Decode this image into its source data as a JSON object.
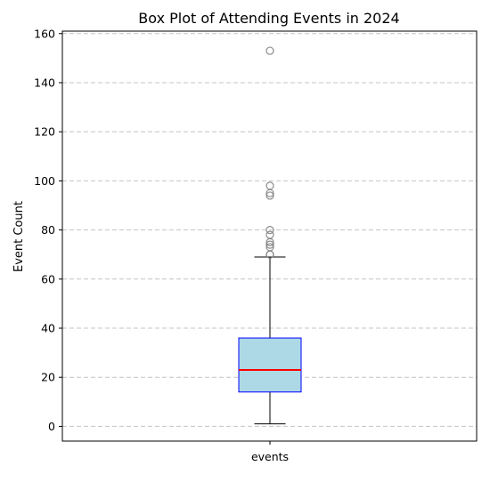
{
  "chart_data": {
    "type": "box",
    "title": "Box Plot of Attending Events in 2024",
    "xlabel": "",
    "ylabel": "Event Count",
    "categories": [
      "events"
    ],
    "ylim": [
      -6,
      161
    ],
    "yticks": [
      0,
      20,
      40,
      60,
      80,
      100,
      120,
      140,
      160
    ],
    "grid": "horizontal-dashed",
    "box": {
      "whisker_low": 1,
      "q1": 14,
      "median": 23,
      "q3": 36,
      "whisker_high": 69,
      "outliers": [
        70,
        70,
        73,
        74,
        75,
        78,
        80,
        94,
        95,
        98,
        153
      ]
    },
    "colors": {
      "box_fill": "#add8e6",
      "box_edge": "#0000ff",
      "median": "#ff0000",
      "whisker": "#000000",
      "outlier_edge": "#808080",
      "grid": "#c4c4c4"
    }
  }
}
